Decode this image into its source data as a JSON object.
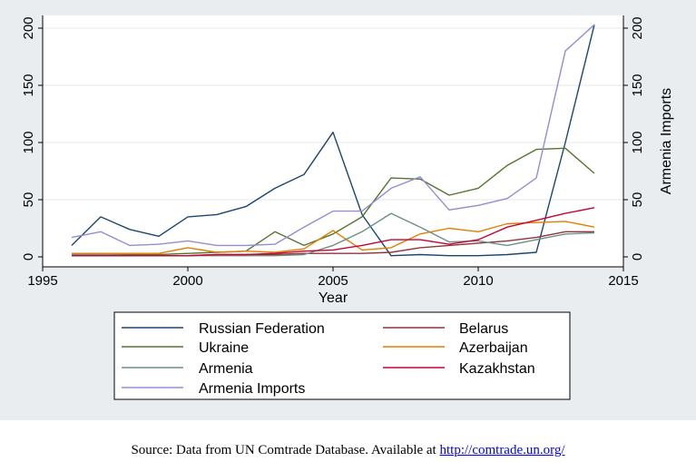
{
  "chart_data": {
    "type": "line",
    "title": "",
    "xlabel": "Year",
    "ylabel": "",
    "y2label": "Armenia Imports",
    "xlim": [
      1995,
      2015
    ],
    "ylim": [
      0,
      210
    ],
    "xticks": [
      1995,
      2000,
      2005,
      2010,
      2015
    ],
    "yticks": [
      0,
      50,
      100,
      150,
      200
    ],
    "y2ticks": [
      0,
      50,
      100,
      150,
      200
    ],
    "grid": true,
    "legend_position": "bottom",
    "x": [
      1996,
      1997,
      1998,
      1999,
      2000,
      2001,
      2002,
      2003,
      2004,
      2005,
      2006,
      2007,
      2008,
      2009,
      2010,
      2011,
      2012,
      2013,
      2014
    ],
    "series": [
      {
        "name": "Russian Federation",
        "color": "#1a476f",
        "axis": "left",
        "values": [
          10,
          35,
          24,
          18,
          35,
          37,
          44,
          60,
          72,
          109,
          37,
          1,
          2,
          1,
          1,
          2,
          4,
          100,
          203
        ]
      },
      {
        "name": "Belarus",
        "color": "#90353b",
        "axis": "left",
        "values": [
          1,
          1,
          1,
          1,
          1,
          2,
          2,
          2,
          3,
          3,
          3,
          4,
          8,
          10,
          12,
          14,
          17,
          22,
          22
        ]
      },
      {
        "name": "Ukraine",
        "color": "#55752f",
        "axis": "left",
        "values": [
          2,
          2,
          2,
          2,
          3,
          4,
          5,
          22,
          10,
          20,
          35,
          69,
          68,
          54,
          60,
          80,
          94,
          95,
          73
        ]
      },
      {
        "name": "Azerbaijan",
        "color": "#e37e00",
        "axis": "left",
        "values": [
          3,
          3,
          3,
          3,
          8,
          4,
          5,
          4,
          7,
          23,
          6,
          8,
          20,
          25,
          22,
          29,
          30,
          31,
          26
        ]
      },
      {
        "name": "Armenia",
        "color": "#6e8e84",
        "axis": "left",
        "values": [
          2,
          2,
          1,
          1,
          1,
          1,
          1,
          1,
          2,
          10,
          22,
          38,
          26,
          13,
          14,
          10,
          15,
          20,
          21
        ]
      },
      {
        "name": "Kazakhstan",
        "color": "#c10534",
        "axis": "left",
        "values": [
          1,
          1,
          1,
          1,
          1,
          2,
          2,
          3,
          5,
          6,
          10,
          15,
          15,
          11,
          15,
          26,
          32,
          38,
          43
        ]
      },
      {
        "name": "Armenia Imports",
        "color": "#938dd2",
        "axis": "right",
        "values": [
          17,
          22,
          10,
          11,
          14,
          10,
          10,
          11,
          26,
          40,
          40,
          60,
          70,
          41,
          45,
          51,
          69,
          180,
          203
        ]
      }
    ],
    "legend_columns": [
      [
        "Russian Federation",
        "Ukraine",
        "Armenia",
        "Armenia Imports"
      ],
      [
        "Belarus",
        "Azerbaijan",
        "Kazakhstan"
      ]
    ]
  },
  "caption": {
    "text": "Source: Data from UN Comtrade Database. Available at ",
    "link_text": "http://comtrade.un.org/"
  }
}
